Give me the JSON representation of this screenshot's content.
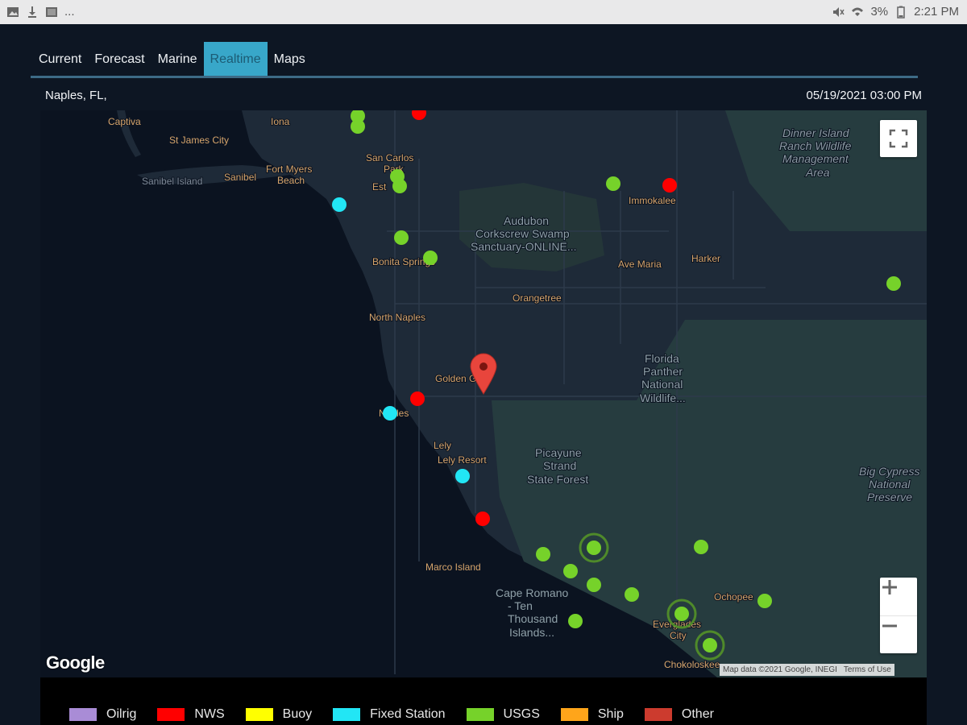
{
  "status_bar": {
    "left_icons": [
      "image-icon",
      "download-icon",
      "photo-icon"
    ],
    "overflow": "...",
    "battery": "3%",
    "time": "2:21 PM"
  },
  "tabs": [
    {
      "label": "Current",
      "active": false
    },
    {
      "label": "Forecast",
      "active": false
    },
    {
      "label": "Marine",
      "active": false
    },
    {
      "label": "Realtime",
      "active": true
    },
    {
      "label": "Maps",
      "active": false
    }
  ],
  "location": "Naples, FL,",
  "datetime": "05/19/2021 03:00 PM",
  "map": {
    "place_labels": [
      {
        "text": "Captiva",
        "type": "place"
      },
      {
        "text": "St James City",
        "type": "place"
      },
      {
        "text": "Iona",
        "type": "place"
      },
      {
        "text": "Sanibel Island",
        "type": "region"
      },
      {
        "text": "Sanibel",
        "type": "place"
      },
      {
        "text": "Fort Myers",
        "type": "place"
      },
      {
        "text": "Beach",
        "type": "place"
      },
      {
        "text": "San Carlos",
        "type": "place"
      },
      {
        "text": "Park",
        "type": "place"
      },
      {
        "text": "Est",
        "type": "place"
      },
      {
        "text": "Bonita Springs",
        "type": "place"
      },
      {
        "text": "North Naples",
        "type": "place"
      },
      {
        "text": "Orangetree",
        "type": "place"
      },
      {
        "text": "Golden Gate",
        "type": "place"
      },
      {
        "text": "Naples",
        "type": "place"
      },
      {
        "text": "Lely",
        "type": "place"
      },
      {
        "text": "Lely Resort",
        "type": "place"
      },
      {
        "text": "Marco Island",
        "type": "place"
      },
      {
        "text": "Immokalee",
        "type": "place"
      },
      {
        "text": "Ave Maria",
        "type": "place"
      },
      {
        "text": "Harker",
        "type": "place"
      },
      {
        "text": "Ochopee",
        "type": "place"
      },
      {
        "text": "Everglades",
        "type": "place"
      },
      {
        "text": "City",
        "type": "place"
      },
      {
        "text": "Chokoloskee",
        "type": "place"
      },
      {
        "text": "Audubon",
        "type": "park"
      },
      {
        "text": "Corkscrew Swamp",
        "type": "park"
      },
      {
        "text": "Sanctuary-ONLINE...",
        "type": "park"
      },
      {
        "text": "Florida",
        "type": "park"
      },
      {
        "text": "Panther",
        "type": "park"
      },
      {
        "text": "National",
        "type": "park"
      },
      {
        "text": "Wildlife...",
        "type": "park"
      },
      {
        "text": "Picayune",
        "type": "park"
      },
      {
        "text": "Strand",
        "type": "park"
      },
      {
        "text": "State Forest",
        "type": "park"
      },
      {
        "text": "Cape Romano",
        "type": "park"
      },
      {
        "text": "- Ten",
        "type": "park"
      },
      {
        "text": "Thousand",
        "type": "park"
      },
      {
        "text": "Islands...",
        "type": "park"
      },
      {
        "text": "Dinner Island",
        "type": "reserve"
      },
      {
        "text": "Ranch Wildlife",
        "type": "reserve"
      },
      {
        "text": "Management",
        "type": "reserve"
      },
      {
        "text": "Area",
        "type": "reserve"
      },
      {
        "text": "Big Cypress",
        "type": "reserve"
      },
      {
        "text": "National",
        "type": "reserve"
      },
      {
        "text": "Preserve",
        "type": "reserve"
      }
    ],
    "stations": [
      {
        "type": "USGS"
      },
      {
        "type": "USGS"
      },
      {
        "type": "NWS"
      },
      {
        "type": "USGS"
      },
      {
        "type": "USGS"
      },
      {
        "type": "Fixed Station"
      },
      {
        "type": "USGS"
      },
      {
        "type": "USGS"
      },
      {
        "type": "NWS"
      },
      {
        "type": "USGS"
      },
      {
        "type": "USGS"
      },
      {
        "type": "NWS"
      },
      {
        "type": "Fixed Station"
      },
      {
        "type": "Fixed Station"
      },
      {
        "type": "NWS"
      },
      {
        "type": "USGS"
      },
      {
        "type": "USGS",
        "ring": true
      },
      {
        "type": "USGS"
      },
      {
        "type": "USGS"
      },
      {
        "type": "USGS"
      },
      {
        "type": "USGS"
      },
      {
        "type": "USGS"
      },
      {
        "type": "USGS"
      },
      {
        "type": "USGS",
        "ring": true
      },
      {
        "type": "USGS",
        "ring": true
      }
    ],
    "google_logo": "Google",
    "attribution": "Map data ©2021 Google, INEGI",
    "terms": "Terms of Use",
    "controls": {
      "fullscreen_icon": "fullscreen-icon",
      "zoom_in": "+",
      "zoom_out": "−"
    }
  },
  "legend": [
    {
      "label": "Oilrig",
      "color": "#a98cd6"
    },
    {
      "label": "NWS",
      "color": "#ff0000"
    },
    {
      "label": "Buoy",
      "color": "#ffff00"
    },
    {
      "label": "Fixed Station",
      "color": "#22e6f5"
    },
    {
      "label": "USGS",
      "color": "#76d22a"
    },
    {
      "label": "Ship",
      "color": "#ffa51a"
    },
    {
      "label": "Other",
      "color": "#cc3b2e"
    }
  ],
  "colors": {
    "background": "#0d1623",
    "tab_active": "#38a7c9",
    "water": "#0b1320",
    "land": "#1e2a38",
    "park": "#263c3f",
    "label_place": "#d6a46b",
    "label_park": "#8fa0a8"
  }
}
